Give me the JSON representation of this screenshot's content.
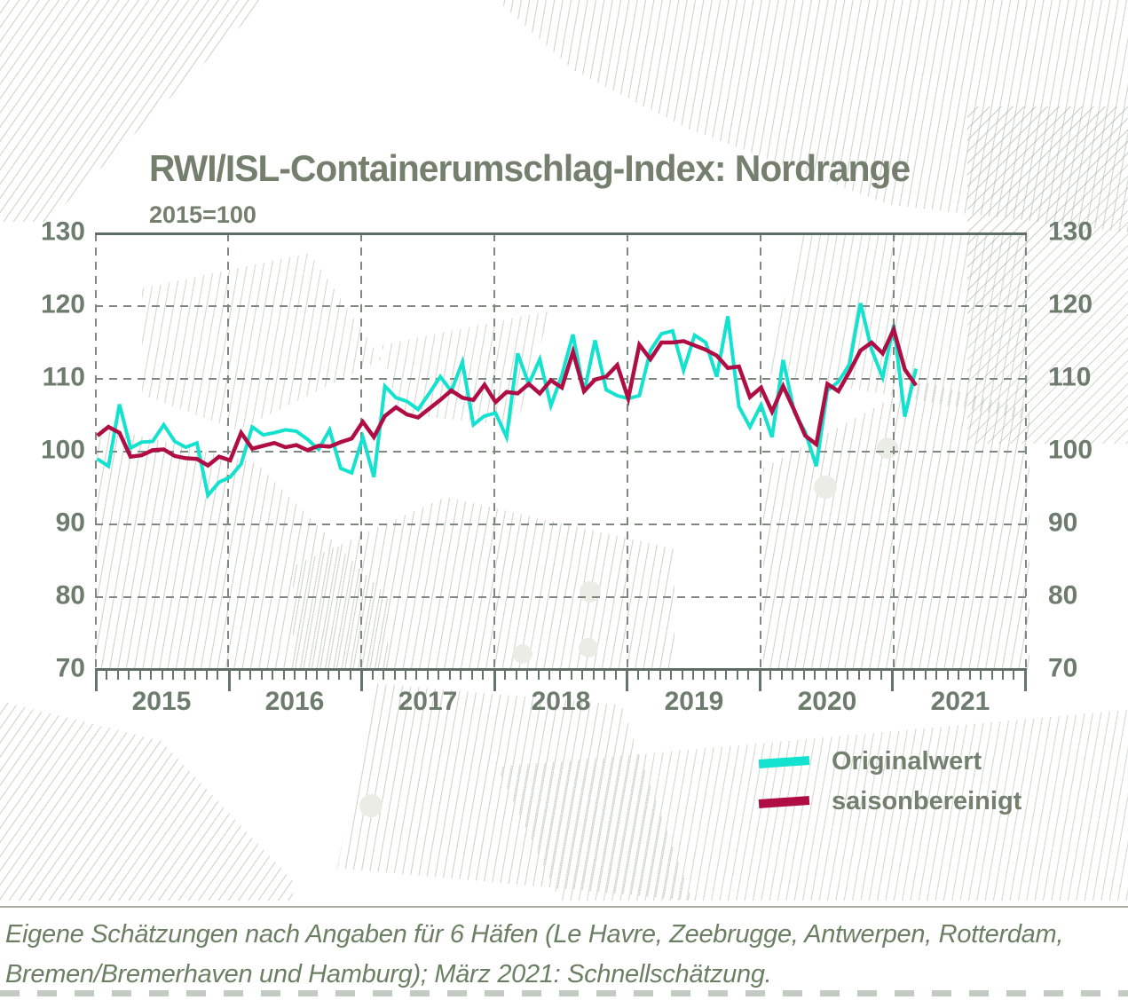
{
  "title": "RWI/ISL-Containerumschlag-Index: Nordrange",
  "subtitle": "2015=100",
  "legend": [
    {
      "label": "Originalwert",
      "color": "#12e2ce"
    },
    {
      "label": "saisonbereinigt",
      "color": "#b00d45"
    }
  ],
  "caption_line1": "Eigene Schätzungen nach Angaben für 6 Häfen (Le Havre, Zeebrugge, Antwerpen, Rotterdam,",
  "caption_line2": "Bremen/Bremerhaven und Hamburg); März 2021: Schnellschätzung.",
  "y_axis": {
    "ticks": [
      130,
      120,
      110,
      100,
      90,
      80,
      70
    ]
  },
  "x_axis": {
    "years": [
      "2015",
      "2016",
      "2017",
      "2018",
      "2019",
      "2020",
      "2021"
    ]
  },
  "chart_data": {
    "type": "line",
    "x_start": "2015-01",
    "x_end": "2021-03",
    "x_unit": "month",
    "ylim": [
      70,
      130
    ],
    "grid": "dashed",
    "legend_position": "below-right",
    "series": [
      {
        "name": "Originalwert",
        "color": "#12e2ce",
        "values": [
          99.0,
          98.0,
          106.5,
          100.5,
          101.3,
          101.4,
          103.7,
          101.4,
          100.6,
          101.2,
          94.0,
          95.8,
          96.5,
          98.3,
          103.4,
          102.3,
          102.6,
          103.0,
          102.8,
          101.7,
          100.3,
          103.0,
          97.7,
          97.1,
          102.0,
          96.5,
          109.0,
          107.4,
          106.9,
          105.8,
          108.0,
          110.3,
          108.3,
          112.3,
          103.7,
          104.9,
          105.3,
          102.0,
          113.5,
          109.3,
          112.7,
          106.3,
          110.5,
          116.1,
          108.1,
          115.3,
          108.5,
          107.7,
          107.3,
          107.7,
          113.9,
          116.2,
          116.6,
          111.2,
          116.0,
          115.0,
          110.3,
          118.6,
          106.2,
          103.4,
          106.4,
          102.0,
          112.6,
          105.5,
          102.7,
          98.0,
          108.4,
          109.6,
          112.0,
          120.4,
          114.0,
          110.2,
          117.4,
          104.8,
          111.4
        ]
      },
      {
        "name": "saisonbereinigt",
        "color": "#b00d45",
        "values": [
          102.2,
          103.4,
          102.6,
          99.3,
          99.5,
          100.2,
          100.3,
          99.4,
          99.1,
          99.0,
          98.1,
          99.3,
          98.8,
          102.6,
          100.4,
          100.8,
          101.2,
          100.6,
          100.9,
          100.2,
          100.8,
          100.7,
          101.3,
          101.8,
          104.1,
          102.0,
          104.9,
          106.1,
          105.1,
          104.7,
          105.9,
          107.1,
          108.4,
          107.4,
          107.1,
          109.2,
          106.8,
          108.2,
          108.0,
          109.3,
          108.0,
          109.8,
          108.8,
          113.7,
          108.3,
          109.9,
          110.3,
          111.9,
          107.3,
          114.7,
          112.7,
          115.0,
          115.0,
          115.2,
          114.6,
          114.0,
          113.2,
          111.5,
          111.7,
          107.5,
          108.8,
          105.5,
          109.0,
          105.7,
          102.2,
          101.0,
          109.3,
          108.3,
          111.0,
          113.9,
          115.0,
          113.5,
          116.8,
          111.3,
          109.1
        ]
      }
    ]
  }
}
